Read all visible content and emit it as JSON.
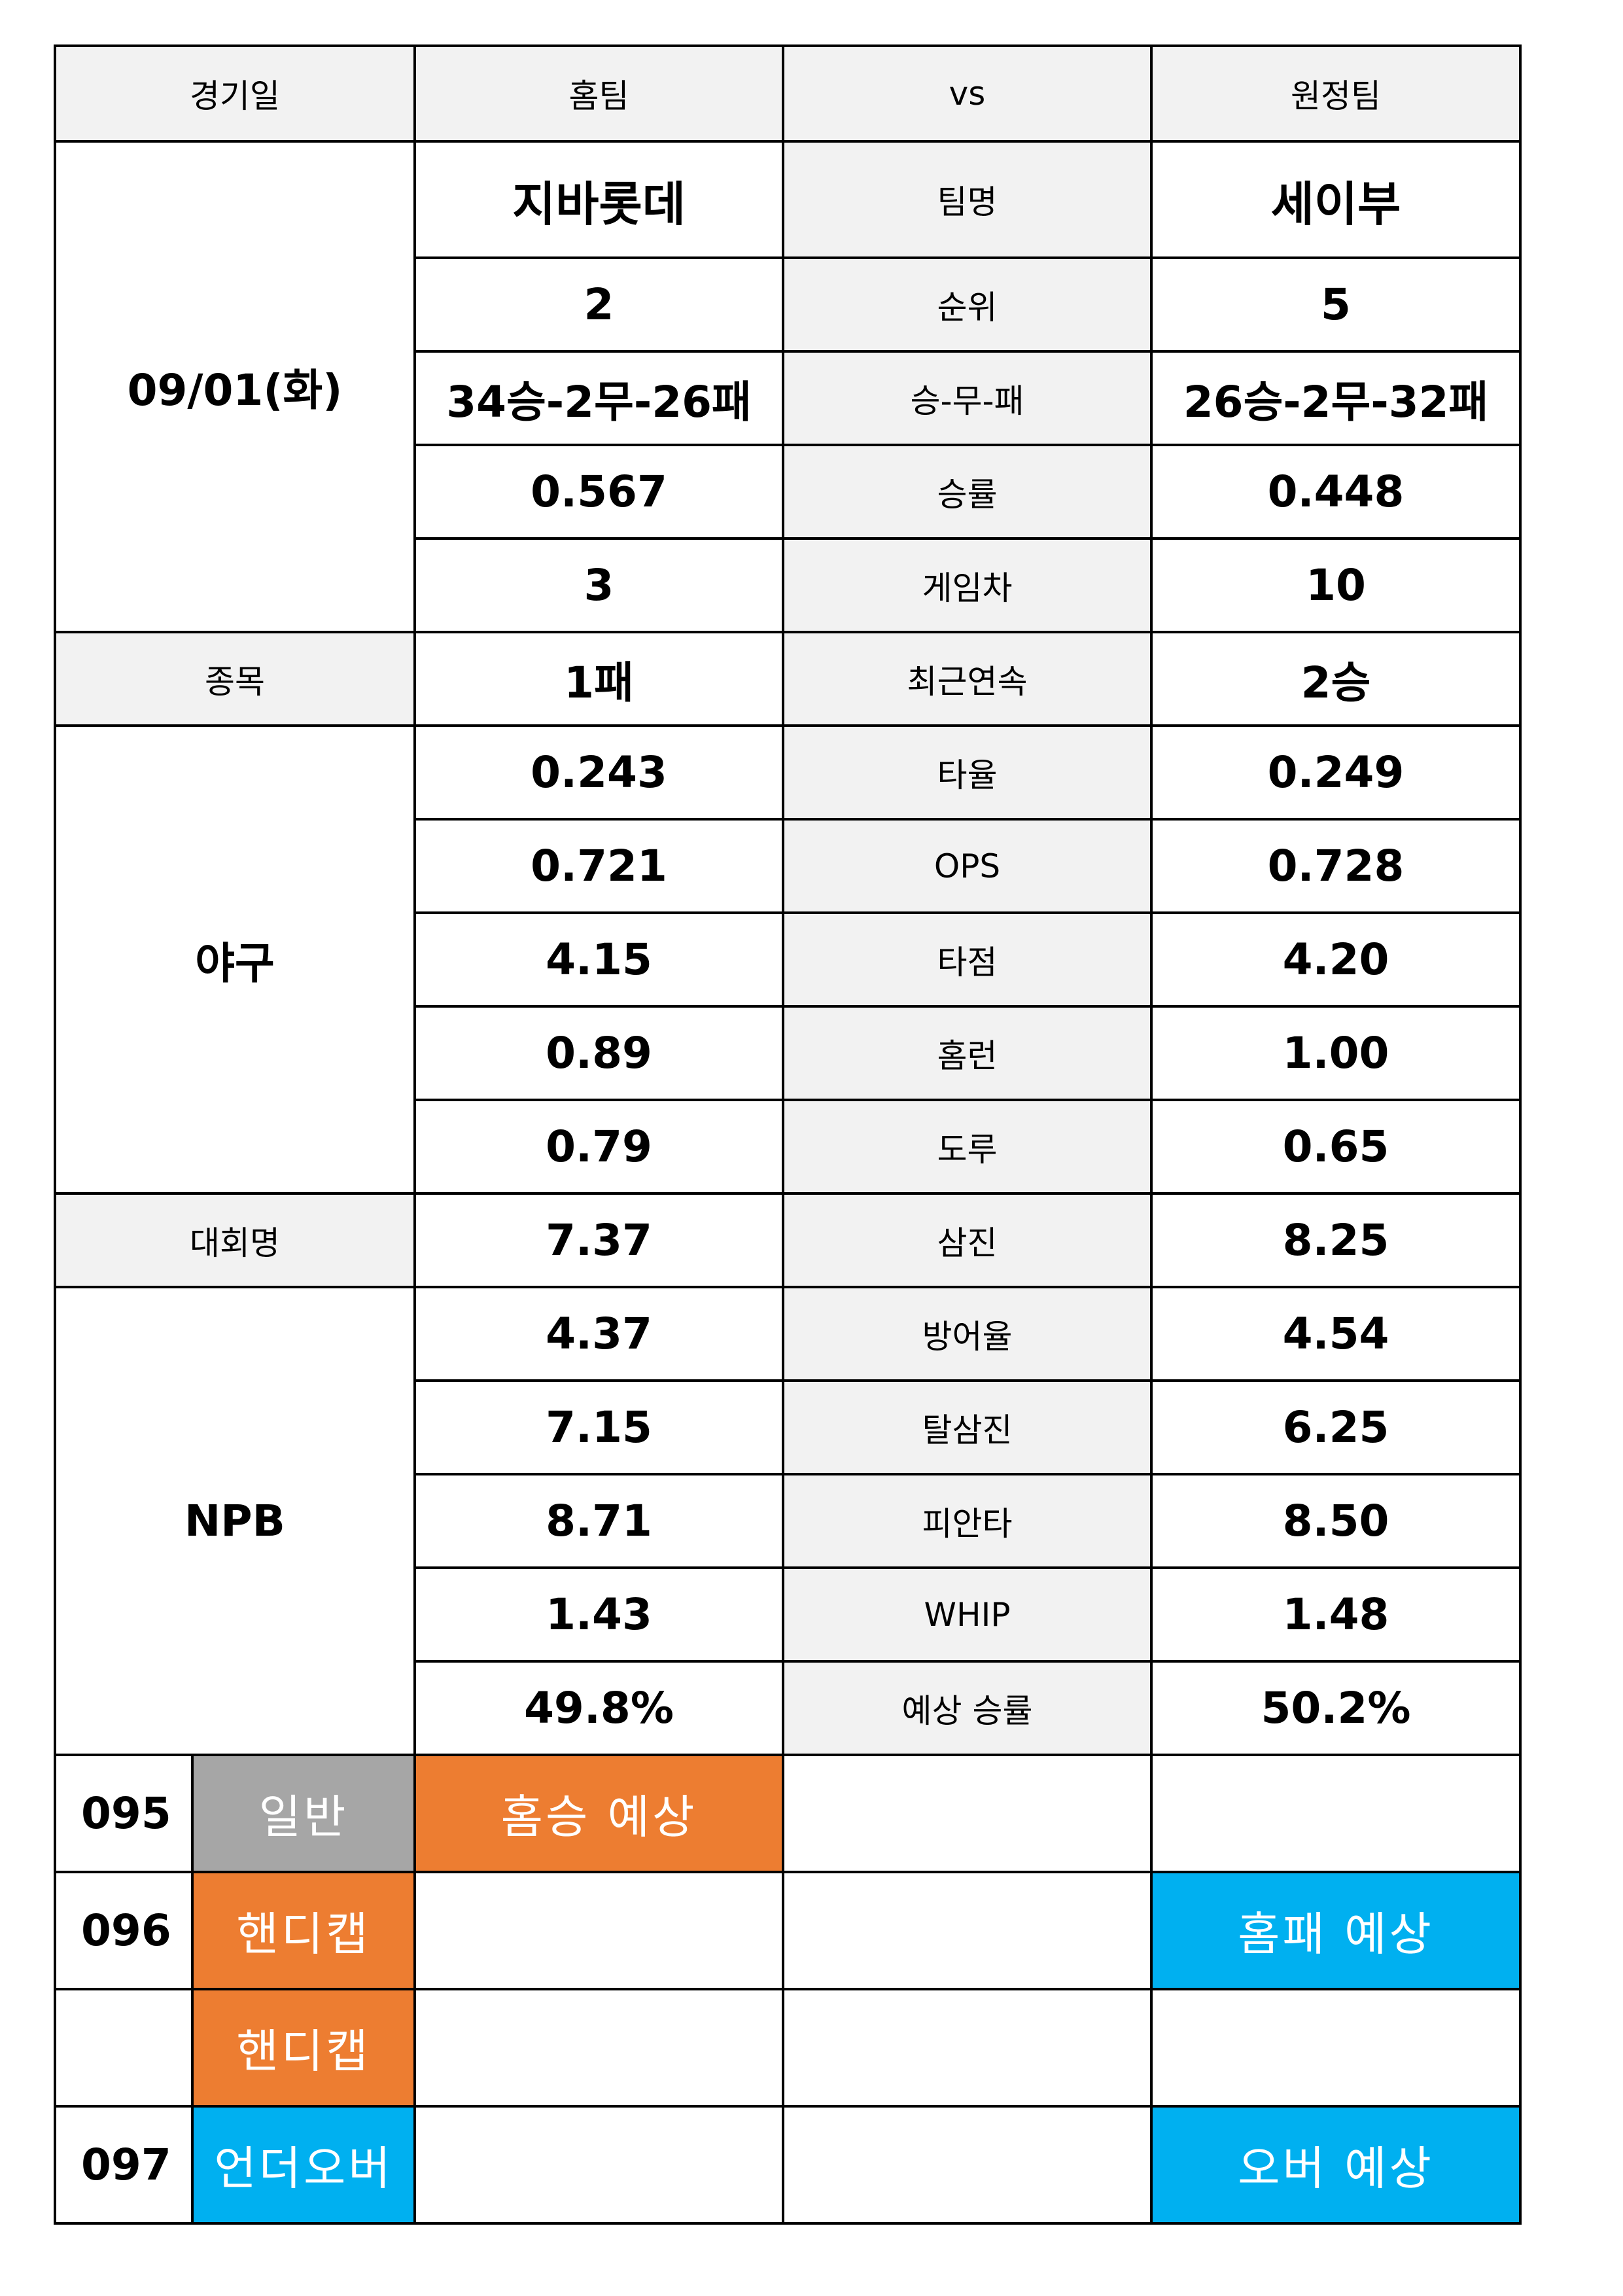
{
  "header": {
    "date_label": "경기일",
    "home_label": "홈팀",
    "vs_label": "vs",
    "away_label": "원정팀"
  },
  "match": {
    "date": "09/01(화)",
    "sport_label": "종목",
    "sport": "야구",
    "league_label": "대회명",
    "league": "NPB"
  },
  "stats": [
    {
      "label": "팀명",
      "home": "지바롯데",
      "away": "세이부"
    },
    {
      "label": "순위",
      "home": "2",
      "away": "5"
    },
    {
      "label": "승-무-패",
      "home": "34승-2무-26패",
      "away": "26승-2무-32패"
    },
    {
      "label": "승률",
      "home": "0.567",
      "away": "0.448"
    },
    {
      "label": "게임차",
      "home": "3",
      "away": "10"
    },
    {
      "label": "최근연속",
      "home": "1패",
      "away": "2승"
    },
    {
      "label": "타율",
      "home": "0.243",
      "away": "0.249"
    },
    {
      "label": "OPS",
      "home": "0.721",
      "away": "0.728"
    },
    {
      "label": "타점",
      "home": "4.15",
      "away": "4.20"
    },
    {
      "label": "홈런",
      "home": "0.89",
      "away": "1.00"
    },
    {
      "label": "도루",
      "home": "0.79",
      "away": "0.65"
    },
    {
      "label": "삼진",
      "home": "7.37",
      "away": "8.25"
    },
    {
      "label": "방어율",
      "home": "4.37",
      "away": "4.54"
    },
    {
      "label": "탈삼진",
      "home": "7.15",
      "away": "6.25"
    },
    {
      "label": "피안타",
      "home": "8.71",
      "away": "8.50"
    },
    {
      "label": "WHIP",
      "home": "1.43",
      "away": "1.48"
    },
    {
      "label": "예상 승률",
      "home": "49.8%",
      "away": "50.2%"
    }
  ],
  "picks": [
    {
      "number": "095",
      "type": "일반",
      "home_pick": "홈승 예상",
      "away_pick": ""
    },
    {
      "number": "096",
      "type": "핸디캡",
      "home_pick": "",
      "away_pick": "홈패 예상"
    },
    {
      "number": "",
      "type": "핸디캡",
      "home_pick": "",
      "away_pick": ""
    },
    {
      "number": "097",
      "type": "언더오버",
      "home_pick": "",
      "away_pick": "오버 예상"
    }
  ],
  "colors": {
    "label_bg": "#f2f2f2",
    "general_bg": "#a6a6a6",
    "handicap_bg": "#ed7d31",
    "home_pick_bg": "#ed7d31",
    "blue_bg": "#00b0f0"
  }
}
